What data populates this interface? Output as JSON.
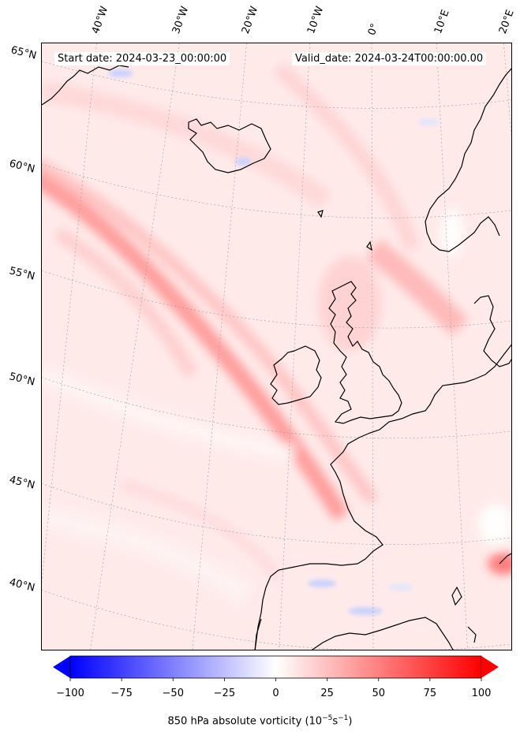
{
  "header": {
    "start_date": "Start date: 2024-03-23_00:00:00",
    "valid_date": "Valid_date: 2024-03-24T00:00:00.00"
  },
  "latitude_labels": [
    "65°N",
    "60°N",
    "55°N",
    "50°N",
    "45°N",
    "40°N"
  ],
  "longitude_labels": [
    "40°W",
    "30°W",
    "20°W",
    "10°W",
    "0°",
    "10°E",
    "20°E"
  ],
  "colorbar": {
    "min": -100,
    "max": 100,
    "ticks": [
      "−100",
      "−75",
      "−50",
      "−25",
      "0",
      "25",
      "50",
      "75",
      "100"
    ],
    "label_prefix": "850 hPa absolute vorticity (10",
    "label_exp1": "−5",
    "label_mid": "s",
    "label_exp2": "−1",
    "label_suffix": ")",
    "colors": {
      "low": "#0000ff",
      "mid": "#ffffff",
      "high": "#ff0000"
    },
    "extend": "both"
  }
}
